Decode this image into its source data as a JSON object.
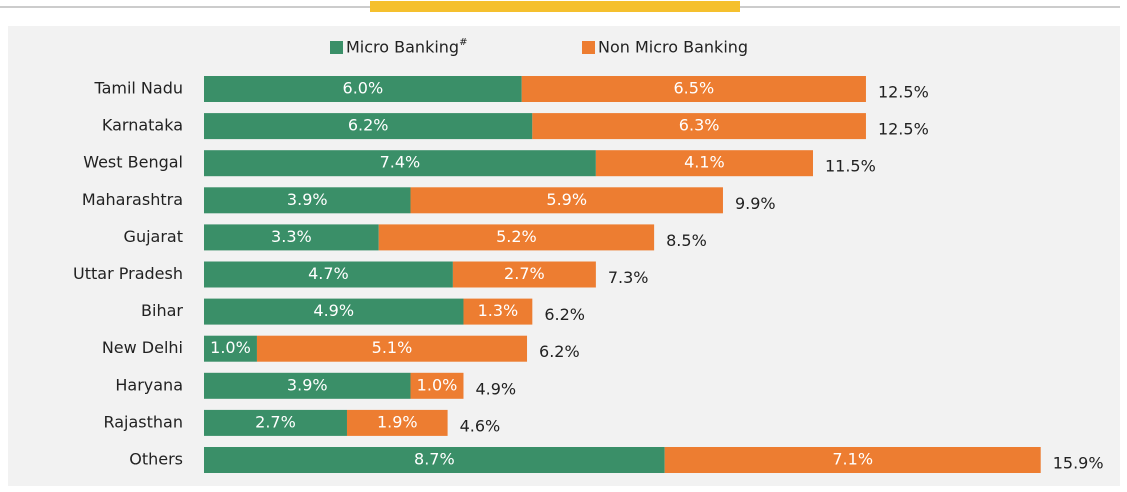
{
  "chart_data": {
    "type": "stacked-barh",
    "categories": [
      "Tamil Nadu",
      "Karnataka",
      "West Bengal",
      "Maharashtra",
      "Gujarat",
      "Uttar Pradesh",
      "Bihar",
      "New Delhi",
      "Haryana",
      "Rajasthan",
      "Others"
    ],
    "series": [
      {
        "name": "Micro Banking",
        "footnote_marker": "#",
        "color": "#3a8f68",
        "values": [
          6.0,
          6.2,
          7.4,
          3.9,
          3.3,
          4.7,
          4.9,
          1.0,
          3.9,
          2.7,
          8.7
        ],
        "value_labels": [
          "6.0%",
          "6.2%",
          "7.4%",
          "3.9%",
          "3.3%",
          "4.7%",
          "4.9%",
          "1.0%",
          "3.9%",
          "2.7%",
          "8.7%"
        ]
      },
      {
        "name": "Non Micro Banking",
        "color": "#ed7d31",
        "values": [
          6.5,
          6.3,
          4.1,
          5.9,
          5.2,
          2.7,
          1.3,
          5.1,
          1.0,
          1.9,
          7.1
        ],
        "value_labels": [
          "6.5%",
          "6.3%",
          "4.1%",
          "5.9%",
          "5.2%",
          "2.7%",
          "1.3%",
          "5.1%",
          "1.0%",
          "1.9%",
          "7.1%"
        ]
      }
    ],
    "totals": [
      12.5,
      12.5,
      11.5,
      9.9,
      8.5,
      7.3,
      6.2,
      6.2,
      4.9,
      4.6,
      15.9
    ],
    "total_labels": [
      "12.5%",
      "12.5%",
      "11.5%",
      "9.9%",
      "8.5%",
      "7.3%",
      "6.2%",
      "6.2%",
      "4.9%",
      "4.6%",
      "15.9%"
    ]
  }
}
